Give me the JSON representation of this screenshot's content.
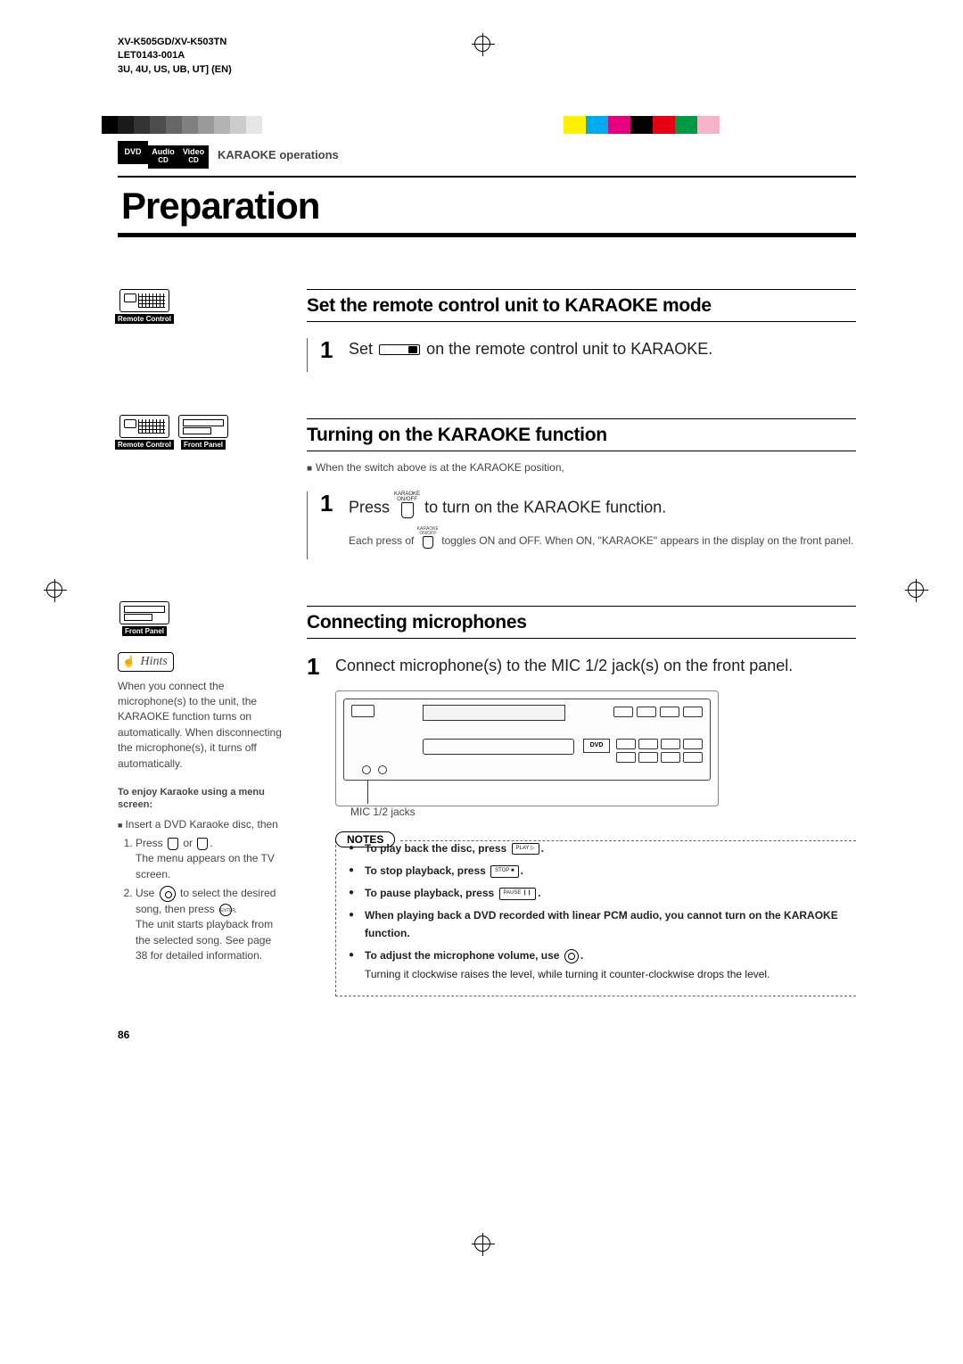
{
  "meta": {
    "model": "XV-K505GD/XV-K503TN",
    "doc_code": "LET0143-001A",
    "regions": "3U, 4U, US, UB, UT]   (EN)"
  },
  "crop": {
    "gray_shades": [
      "#000000",
      "#1a1a1a",
      "#333333",
      "#4d4d4d",
      "#666666",
      "#808080",
      "#999999",
      "#b3b3b3",
      "#cccccc",
      "#e6e6e6"
    ],
    "colors": [
      "#fff100",
      "#00aaee",
      "#e4007f",
      "#000000",
      "#e60012",
      "#009944",
      "#f5b2c8",
      "#ffffff"
    ]
  },
  "section": {
    "badges": [
      {
        "top": "DVD",
        "bottom": ""
      },
      {
        "top": "Audio",
        "bottom": "CD"
      },
      {
        "top": "Video",
        "bottom": "CD"
      }
    ],
    "label": "KARAOKE operations"
  },
  "title": "Preparation",
  "icons": {
    "remote": "Remote Control",
    "panel": "Front Panel"
  },
  "sec1": {
    "heading": "Set the remote control unit to KARAOKE mode",
    "step_num": "1",
    "step_a": "Set",
    "step_b": "on the remote control unit to KARAOKE."
  },
  "sec2": {
    "heading": "Turning on the KARAOKE function",
    "pre_note": "When the switch above is at the KARAOKE position,",
    "step_num": "1",
    "step_a": "Press",
    "step_b": "to turn on the KARAOKE function.",
    "detail": "Each press of        toggles ON and OFF. When ON, \"KARAOKE\" appears in the display on the front panel.",
    "btn_label_top": "KARAOKE",
    "btn_label_bottom": "ON/OFF"
  },
  "sec3": {
    "heading": "Connecting microphones",
    "step_num": "1",
    "step_text": "Connect microphone(s) to the MIC 1/2 jack(s) on the front panel.",
    "fig_label": "MIC 1/2 jacks",
    "dvd_label": "DVD"
  },
  "hints": {
    "title": "Hints",
    "body": "When you connect the microphone(s) to the unit, the KARAOKE function turns on automatically. When disconnecting the microphone(s), it turns off automatically.",
    "sub": "To enjoy Karaoke using a menu screen:",
    "bullet": "Insert a DVD Karaoke disc, then",
    "li1_a": "Press",
    "li1_b": "or",
    "li1_c": ".",
    "li1_d": "The menu appears on the TV screen.",
    "li2_a": "Use",
    "li2_b": "to select the desired song, then press",
    "li2_c": ".",
    "li2_d": "The unit starts playback from the selected song. See page 38 for detailed information.",
    "enter": "ENTER"
  },
  "notes": {
    "title": "NOTES",
    "items": [
      {
        "bold": "To play back the disc, press",
        "btn": "PLAY ▷",
        "tail": "."
      },
      {
        "bold": "To stop playback, press",
        "btn": "STOP ■",
        "tail": "."
      },
      {
        "bold": "To pause playback, press",
        "btn": "PAUSE ❙❙",
        "tail": "."
      },
      {
        "bold": "When playing back a DVD recorded with linear PCM audio, you cannot turn on the KARAOKE function.",
        "btn": "",
        "tail": ""
      },
      {
        "bold": "To adjust the microphone volume, use",
        "btn": "knob",
        "tail": ".",
        "detail": "Turning it clockwise raises the level, while turning it counter-clockwise drops the level."
      }
    ]
  },
  "page_number": "86"
}
